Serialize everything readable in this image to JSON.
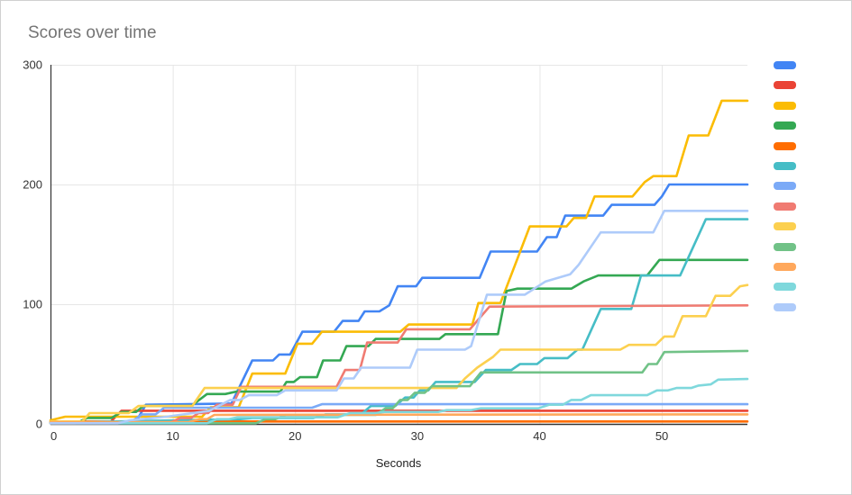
{
  "card": {
    "title": "Scores over time"
  },
  "axes": {
    "x_label": "Seconds",
    "x_ticks": [
      0,
      10,
      20,
      30,
      40,
      50
    ],
    "y_ticks": [
      0,
      100,
      200,
      300
    ],
    "x_max": 57,
    "y_max": 300,
    "grid_color": "#e6e6e6",
    "axis_color": "#333333",
    "tick_label_color": "#333333"
  },
  "legend": {
    "note": "color swatches only, no text labels visible",
    "swatch_colors": [
      "#4285F4",
      "#EA4335",
      "#FBBC04",
      "#34A853",
      "#FF6D01",
      "#46BDC6",
      "#7BAAF7",
      "#F07B72",
      "#FCD04F",
      "#71C287",
      "#FFA85C",
      "#7FD8DC",
      "#AECBFA"
    ]
  },
  "chart_data": {
    "type": "line",
    "title": "Scores over time",
    "xlabel": "Seconds",
    "ylabel": "",
    "xlim": [
      0,
      57
    ],
    "ylim": [
      0,
      300
    ],
    "grid": true,
    "legend_position": "right",
    "line_style": "stepped, monotonically increasing scores",
    "series": [
      {
        "id": "series-1",
        "label": "",
        "color": "#4285F4",
        "points": [
          [
            0,
            2
          ],
          [
            7,
            2
          ],
          [
            7.8,
            16
          ],
          [
            14.8,
            17
          ],
          [
            16.5,
            53
          ],
          [
            18.2,
            53
          ],
          [
            18.7,
            58
          ],
          [
            19.6,
            58
          ],
          [
            20.6,
            77
          ],
          [
            23.2,
            77
          ],
          [
            23.9,
            86
          ],
          [
            25.2,
            86
          ],
          [
            25.7,
            94
          ],
          [
            26.9,
            94
          ],
          [
            27.7,
            99
          ],
          [
            28.4,
            115
          ],
          [
            29.9,
            115
          ],
          [
            30.4,
            122
          ],
          [
            35.1,
            122
          ],
          [
            36,
            144
          ],
          [
            39.8,
            144
          ],
          [
            40.6,
            156
          ],
          [
            41.4,
            156
          ],
          [
            42.1,
            174
          ],
          [
            45.2,
            174
          ],
          [
            45.9,
            183
          ],
          [
            49.4,
            183
          ],
          [
            50,
            190
          ],
          [
            50.6,
            200
          ],
          [
            57,
            200
          ]
        ]
      },
      {
        "id": "series-2",
        "label": "",
        "color": "#EA4335",
        "points": [
          [
            0,
            0.5
          ],
          [
            4.8,
            0.5
          ],
          [
            5.8,
            11
          ],
          [
            57,
            11
          ]
        ]
      },
      {
        "id": "series-3",
        "label": "",
        "color": "#FBBC04",
        "points": [
          [
            0,
            3
          ],
          [
            1.2,
            6
          ],
          [
            12.4,
            6
          ],
          [
            13.1,
            14
          ],
          [
            15.4,
            14
          ],
          [
            16.5,
            42
          ],
          [
            19.2,
            42
          ],
          [
            20.2,
            67
          ],
          [
            21.4,
            67
          ],
          [
            22.2,
            77
          ],
          [
            28.6,
            77
          ],
          [
            29.3,
            83
          ],
          [
            34.5,
            83
          ],
          [
            35,
            101
          ],
          [
            36.8,
            101
          ],
          [
            39.2,
            165
          ],
          [
            42.2,
            165
          ],
          [
            42.8,
            172
          ],
          [
            43.8,
            172
          ],
          [
            44.5,
            190
          ],
          [
            47.6,
            190
          ],
          [
            48.6,
            202
          ],
          [
            49.3,
            207
          ],
          [
            51.2,
            207
          ],
          [
            52.2,
            241
          ],
          [
            53.8,
            241
          ],
          [
            54.9,
            270
          ],
          [
            57,
            270
          ]
        ]
      },
      {
        "id": "series-4",
        "label": "",
        "color": "#34A853",
        "points": [
          [
            0,
            1
          ],
          [
            2.2,
            1
          ],
          [
            3,
            5
          ],
          [
            5,
            5
          ],
          [
            5.8,
            10
          ],
          [
            7,
            10
          ],
          [
            7.6,
            15
          ],
          [
            11.5,
            15
          ],
          [
            12.8,
            25
          ],
          [
            14.3,
            25
          ],
          [
            15.2,
            27
          ],
          [
            18.8,
            27
          ],
          [
            19.3,
            35
          ],
          [
            19.9,
            35
          ],
          [
            20.4,
            39
          ],
          [
            21.8,
            39
          ],
          [
            22.3,
            53
          ],
          [
            23.7,
            53
          ],
          [
            24.2,
            65
          ],
          [
            26,
            65
          ],
          [
            26.6,
            71
          ],
          [
            31.8,
            71
          ],
          [
            32.3,
            75
          ],
          [
            36.6,
            75
          ],
          [
            37.3,
            111
          ],
          [
            38.2,
            113
          ],
          [
            42.6,
            113
          ],
          [
            43.6,
            119
          ],
          [
            44.8,
            124
          ],
          [
            48.8,
            124
          ],
          [
            49.8,
            137
          ],
          [
            57,
            137
          ]
        ]
      },
      {
        "id": "series-5",
        "label": "",
        "color": "#FF6D01",
        "points": [
          [
            0,
            0.5
          ],
          [
            2,
            0.5
          ],
          [
            2.6,
            2
          ],
          [
            57,
            2
          ]
        ]
      },
      {
        "id": "series-6",
        "label": "",
        "color": "#46BDC6",
        "points": [
          [
            0,
            1
          ],
          [
            15.5,
            4
          ],
          [
            16.5,
            5
          ],
          [
            21.5,
            5
          ],
          [
            22.5,
            8
          ],
          [
            25.4,
            8
          ],
          [
            26.2,
            15
          ],
          [
            28.2,
            15
          ],
          [
            29,
            22
          ],
          [
            29.7,
            22
          ],
          [
            30.2,
            28
          ],
          [
            30.9,
            28
          ],
          [
            31.5,
            35
          ],
          [
            34.7,
            35
          ],
          [
            35.6,
            45
          ],
          [
            37.7,
            45
          ],
          [
            38.4,
            50
          ],
          [
            39.8,
            50
          ],
          [
            40.4,
            55
          ],
          [
            42.3,
            55
          ],
          [
            43.1,
            62
          ],
          [
            43.5,
            62
          ],
          [
            45,
            96
          ],
          [
            47.5,
            96
          ],
          [
            48.3,
            124
          ],
          [
            51.5,
            124
          ],
          [
            53.6,
            171
          ],
          [
            57,
            171
          ]
        ]
      },
      {
        "id": "series-7",
        "label": "",
        "color": "#7BAAF7",
        "points": [
          [
            0,
            1
          ],
          [
            6.5,
            1
          ],
          [
            7.5,
            8
          ],
          [
            8.6,
            8
          ],
          [
            9.3,
            13.5
          ],
          [
            21.4,
            13.5
          ],
          [
            22.2,
            16.5
          ],
          [
            57,
            16.5
          ]
        ]
      },
      {
        "id": "series-8",
        "label": "",
        "color": "#F07B72",
        "points": [
          [
            0,
            1
          ],
          [
            9.8,
            1
          ],
          [
            10.6,
            5
          ],
          [
            11.5,
            5
          ],
          [
            12.1,
            9
          ],
          [
            12.9,
            9
          ],
          [
            13.6,
            16
          ],
          [
            14.9,
            16
          ],
          [
            15.6,
            31
          ],
          [
            23.4,
            31
          ],
          [
            24.1,
            45
          ],
          [
            25.3,
            45
          ],
          [
            25.9,
            68
          ],
          [
            28.4,
            68
          ],
          [
            29.1,
            79
          ],
          [
            34.3,
            79
          ],
          [
            35.9,
            98
          ],
          [
            57,
            99
          ]
        ]
      },
      {
        "id": "series-9",
        "label": "",
        "color": "#FCD04F",
        "points": [
          [
            0,
            2
          ],
          [
            2.6,
            2
          ],
          [
            3.2,
            9
          ],
          [
            6.4,
            9
          ],
          [
            7.2,
            15
          ],
          [
            11.6,
            15
          ],
          [
            12.6,
            30
          ],
          [
            33.2,
            30
          ],
          [
            33.9,
            38
          ],
          [
            34.9,
            47
          ],
          [
            36.2,
            56
          ],
          [
            36.8,
            62
          ],
          [
            46.6,
            62
          ],
          [
            47.3,
            66
          ],
          [
            49.5,
            66
          ],
          [
            50.2,
            73
          ],
          [
            51,
            73
          ],
          [
            51.7,
            90
          ],
          [
            53.6,
            90
          ],
          [
            54.4,
            107
          ],
          [
            55.6,
            107
          ],
          [
            56.4,
            115
          ],
          [
            57,
            116
          ]
        ]
      },
      {
        "id": "series-10",
        "label": "",
        "color": "#71C287",
        "points": [
          [
            0,
            0.5
          ],
          [
            16.8,
            0.5
          ],
          [
            17.6,
            4
          ],
          [
            18.4,
            4
          ],
          [
            19.2,
            7.5
          ],
          [
            26.6,
            7.5
          ],
          [
            27.4,
            13
          ],
          [
            28,
            13
          ],
          [
            28.6,
            20
          ],
          [
            29.2,
            20
          ],
          [
            29.8,
            26
          ],
          [
            30.6,
            26
          ],
          [
            31.2,
            31.5
          ],
          [
            34.3,
            31.5
          ],
          [
            35.2,
            43
          ],
          [
            48.4,
            43
          ],
          [
            48.9,
            50
          ],
          [
            49.6,
            50
          ],
          [
            50.2,
            60
          ],
          [
            57,
            61
          ]
        ]
      },
      {
        "id": "series-11",
        "label": "",
        "color": "#FFA85C",
        "points": [
          [
            0,
            1.5
          ],
          [
            11.3,
            1.5
          ],
          [
            12.2,
            4
          ],
          [
            12.8,
            4
          ],
          [
            13.4,
            7.5
          ],
          [
            57,
            8
          ]
        ]
      },
      {
        "id": "series-12",
        "label": "",
        "color": "#7FD8DC",
        "points": [
          [
            0,
            0.5
          ],
          [
            12.8,
            0.5
          ],
          [
            13.6,
            4
          ],
          [
            14.6,
            4
          ],
          [
            15.3,
            5.5
          ],
          [
            23.5,
            5.5
          ],
          [
            24.5,
            9
          ],
          [
            26.5,
            9
          ],
          [
            27.3,
            10
          ],
          [
            31.7,
            10
          ],
          [
            32.4,
            11.5
          ],
          [
            34.4,
            11.5
          ],
          [
            35.2,
            13
          ],
          [
            39.9,
            13
          ],
          [
            40.8,
            16
          ],
          [
            41.9,
            16
          ],
          [
            42.6,
            20
          ],
          [
            43.4,
            20
          ],
          [
            44.2,
            24
          ],
          [
            48.8,
            24
          ],
          [
            49.6,
            28
          ],
          [
            50.5,
            28
          ],
          [
            51.2,
            30
          ],
          [
            52.4,
            30
          ],
          [
            53,
            32
          ],
          [
            54,
            33
          ],
          [
            54.6,
            37
          ],
          [
            57,
            37.5
          ]
        ]
      },
      {
        "id": "series-13",
        "label": "",
        "color": "#AECBFA",
        "points": [
          [
            0,
            0.5
          ],
          [
            5.5,
            0.5
          ],
          [
            6.5,
            3
          ],
          [
            9.5,
            6
          ],
          [
            13,
            11
          ],
          [
            14.7,
            20
          ],
          [
            15.5,
            20
          ],
          [
            16.2,
            24
          ],
          [
            18.5,
            24
          ],
          [
            19.2,
            28
          ],
          [
            23.4,
            28
          ],
          [
            24,
            38
          ],
          [
            24.8,
            38
          ],
          [
            25.4,
            47
          ],
          [
            29.4,
            47
          ],
          [
            30,
            62
          ],
          [
            33.9,
            62
          ],
          [
            34.4,
            65
          ],
          [
            35.7,
            108
          ],
          [
            38.8,
            108
          ],
          [
            40.5,
            119
          ],
          [
            42.5,
            125
          ],
          [
            43.2,
            133
          ],
          [
            45,
            160
          ],
          [
            49.3,
            160
          ],
          [
            50.2,
            178
          ],
          [
            57,
            178
          ]
        ]
      }
    ]
  }
}
